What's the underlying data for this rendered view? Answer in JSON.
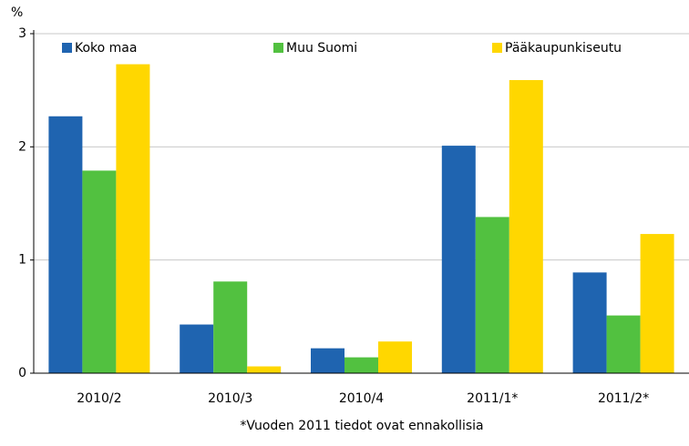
{
  "chart_data": {
    "type": "bar",
    "y_unit": "%",
    "categories": [
      "2010/2",
      "2010/3",
      "2010/4",
      "2011/1*",
      "2011/2*"
    ],
    "series": [
      {
        "name": "Koko maa",
        "color": "#1f64b0",
        "values": [
          2.27,
          0.43,
          0.22,
          2.01,
          0.89
        ]
      },
      {
        "name": "Muu Suomi",
        "color": "#52c140",
        "values": [
          1.79,
          0.81,
          0.14,
          1.38,
          0.51
        ]
      },
      {
        "name": "Pääkaupunkiseutu",
        "color": "#ffd700",
        "values": [
          2.73,
          0.06,
          0.28,
          2.59,
          1.23
        ]
      }
    ],
    "ylim": [
      0,
      3
    ],
    "yticks": [
      0,
      1,
      2,
      3
    ],
    "grid": true,
    "footnote": "*Vuoden 2011 tiedot ovat ennakollisia"
  }
}
